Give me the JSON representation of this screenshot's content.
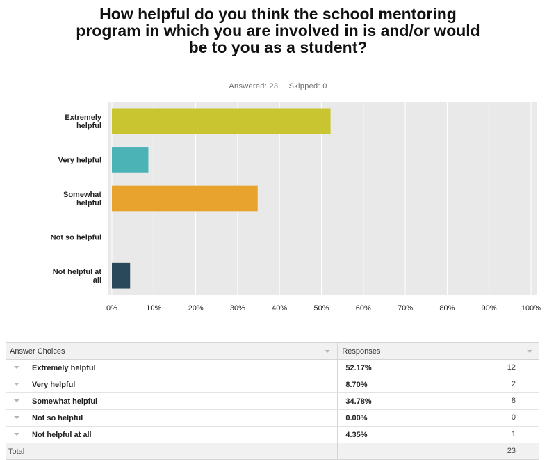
{
  "chart_data": {
    "type": "bar",
    "orientation": "horizontal",
    "title": "How helpful do you think the school mentoring program in which you are involved in is and/or would be to you as a student?",
    "categories": [
      "Extremely helpful",
      "Very helpful",
      "Somewhat helpful",
      "Not so helpful",
      "Not helpful at all"
    ],
    "values": [
      52.17,
      8.7,
      34.78,
      0.0,
      4.35
    ],
    "colors": [
      "#c9c530",
      "#4bb3b5",
      "#e8a22e",
      "#7a8f3a",
      "#2a4a5b"
    ],
    "xlim": [
      0,
      100
    ],
    "ticks": [
      "0%",
      "10%",
      "20%",
      "30%",
      "40%",
      "50%",
      "60%",
      "70%",
      "80%",
      "90%",
      "100%"
    ],
    "grid": true
  },
  "summary": {
    "answered_label": "Answered: 23",
    "skipped_label": "Skipped: 0"
  },
  "table": {
    "headers": [
      "Answer Choices",
      "Responses"
    ],
    "rows": [
      {
        "choice": "Extremely helpful",
        "percent": "52.17%",
        "count": "12"
      },
      {
        "choice": "Very helpful",
        "percent": "8.70%",
        "count": "2"
      },
      {
        "choice": "Somewhat helpful",
        "percent": "34.78%",
        "count": "8"
      },
      {
        "choice": "Not so helpful",
        "percent": "0.00%",
        "count": "0"
      },
      {
        "choice": "Not helpful at all",
        "percent": "4.35%",
        "count": "1"
      }
    ],
    "total_label": "Total",
    "total_count": "23"
  }
}
